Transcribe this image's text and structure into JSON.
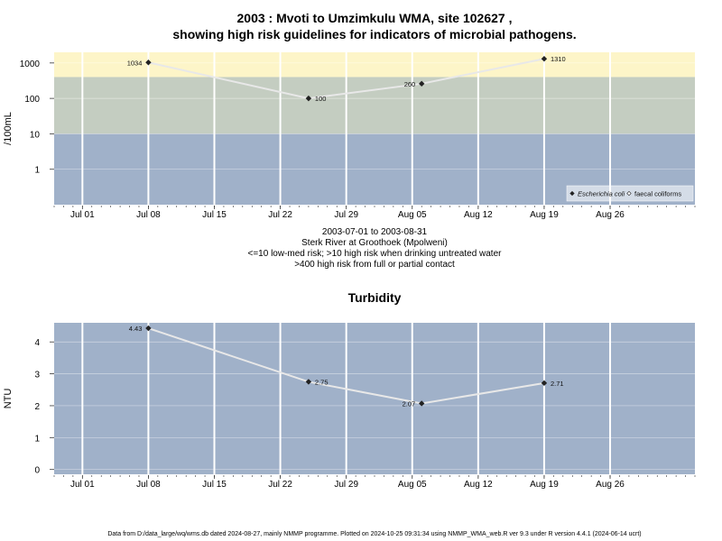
{
  "title_line1": "2003 : Mvoti to Umzimkulu WMA, site 102627 ,",
  "title_line2": "showing high risk guidelines for indicators of microbial pathogens.",
  "caption": [
    "2003-07-01 to 2003-08-31",
    "Sterk River at Groothoek (Mpolweni)",
    "<=10 low-med risk; >10 high risk when drinking untreated water",
    ">400 high risk from full or partial contact"
  ],
  "turbidity_title": "Turbidity",
  "footer": "Data from D:/data_large/wq/wms.db dated 2024-08-27, mainly NMMP programme. Plotted on 2024-10-25 09:31:34 using NMMP_WMA_web.R ver 9.3 under R version 4.4.1 (2024-06-14 ucrt)",
  "colors": {
    "band_high_contact": "#fdf5c8",
    "band_high_drink": "#c4cdc1",
    "band_low": "#a0b1c9",
    "grid": "#ffffff",
    "line": "#e8e8e8",
    "point": "#222222"
  },
  "chart_data": [
    {
      "type": "line",
      "ylabel": "/100mL",
      "yscale": "log",
      "ylim": [
        0.1,
        2000
      ],
      "y_ticks": [
        1,
        10,
        100,
        1000
      ],
      "y_tick_labels": [
        "1",
        "10",
        "100",
        "1000"
      ],
      "x_ticks": [
        "2003-07-01",
        "2003-07-08",
        "2003-07-15",
        "2003-07-22",
        "2003-07-29",
        "2003-08-05",
        "2003-08-12",
        "2003-08-19",
        "2003-08-26"
      ],
      "x_tick_labels": [
        "Jul 01",
        "Jul 08",
        "Jul 15",
        "Jul 22",
        "Jul 29",
        "Aug 05",
        "Aug 12",
        "Aug 19",
        "Aug 26"
      ],
      "xlim": [
        "2003-06-28",
        "2003-09-04"
      ],
      "bands": [
        {
          "from": 400,
          "to": 2000,
          "color_key": "band_high_contact"
        },
        {
          "from": 10,
          "to": 400,
          "color_key": "band_high_drink"
        },
        {
          "from": 0.1,
          "to": 10,
          "color_key": "band_low"
        }
      ],
      "legend": {
        "placement": "bottom-right",
        "entries": [
          {
            "label": "Escherichia coli",
            "symbol": "filled-diamond",
            "italic": true
          },
          {
            "label": "faecal coliforms",
            "symbol": "open-diamond",
            "italic": false
          }
        ]
      },
      "series": [
        {
          "name": "Escherichia coli",
          "points": [
            {
              "x": "2003-07-08",
              "y": 1034,
              "label": "1034"
            },
            {
              "x": "2003-07-25",
              "y": 100,
              "label": "100"
            },
            {
              "x": "2003-08-06",
              "y": 260,
              "label": "260"
            },
            {
              "x": "2003-08-19",
              "y": 1310,
              "label": "1310"
            }
          ]
        }
      ]
    },
    {
      "type": "line",
      "ylabel": "NTU",
      "yscale": "linear",
      "ylim": [
        -0.15,
        4.6
      ],
      "y_ticks": [
        0,
        1,
        2,
        3,
        4
      ],
      "y_tick_labels": [
        "0",
        "1",
        "2",
        "3",
        "4"
      ],
      "x_ticks": [
        "2003-07-01",
        "2003-07-08",
        "2003-07-15",
        "2003-07-22",
        "2003-07-29",
        "2003-08-05",
        "2003-08-12",
        "2003-08-19",
        "2003-08-26"
      ],
      "x_tick_labels": [
        "Jul 01",
        "Jul 08",
        "Jul 15",
        "Jul 22",
        "Jul 29",
        "Aug 05",
        "Aug 12",
        "Aug 19",
        "Aug 26"
      ],
      "xlim": [
        "2003-06-28",
        "2003-09-04"
      ],
      "series": [
        {
          "name": "",
          "points": [
            {
              "x": "2003-07-08",
              "y": 4.43,
              "label": "4.43"
            },
            {
              "x": "2003-07-25",
              "y": 2.75,
              "label": "2.75"
            },
            {
              "x": "2003-08-06",
              "y": 2.07,
              "label": "2.07"
            },
            {
              "x": "2003-08-19",
              "y": 2.71,
              "label": "2.71"
            }
          ]
        }
      ]
    }
  ]
}
